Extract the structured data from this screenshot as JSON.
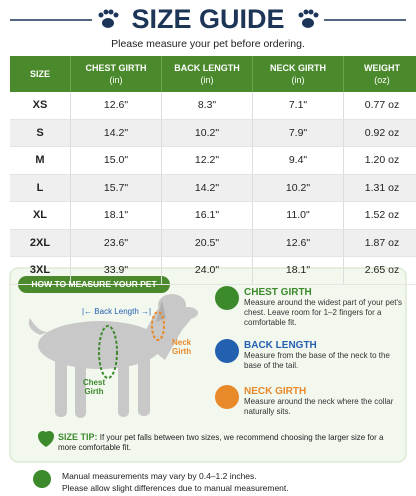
{
  "header": {
    "title": "SIZE GUIDE",
    "subtitle": "Please measure your pet before ordering."
  },
  "table": {
    "columns": [
      {
        "name": "SIZE"
      },
      {
        "name": "CHEST GIRTH",
        "unit": "(in)"
      },
      {
        "name": "BACK LENGTH",
        "unit": "(in)"
      },
      {
        "name": "NECK GIRTH",
        "unit": "(in)"
      },
      {
        "name": "WEIGHT",
        "unit": "(oz)"
      }
    ],
    "rows": [
      [
        "XS",
        "12.6\"",
        "8.3\"",
        "7.1\"",
        "0.77 oz"
      ],
      [
        "S",
        "14.2\"",
        "10.2\"",
        "7.9\"",
        "0.92 oz"
      ],
      [
        "M",
        "15.0\"",
        "12.2\"",
        "9.4\"",
        "1.20 oz"
      ],
      [
        "L",
        "15.7\"",
        "14.2\"",
        "10.2\"",
        "1.31 oz"
      ],
      [
        "XL",
        "18.1\"",
        "16.1\"",
        "11.0\"",
        "1.52 oz"
      ],
      [
        "2XL",
        "23.6\"",
        "20.5\"",
        "12.6\"",
        "1.87 oz"
      ],
      [
        "3XL",
        "33.9\"",
        "24.0\"",
        "18.1\"",
        "2.65 oz"
      ]
    ]
  },
  "measure": {
    "title": "HOW TO MEASURE YOUR PET",
    "diagram": {
      "back_length": "|← Back Length →|",
      "neck_girth": "Neck Girth",
      "chest_girth": "Chest Girth"
    },
    "items": [
      {
        "title": "CHEST GIRTH",
        "text": "Measure around the widest part of your pet's chest. Leave room for 1–2 fingers for a comfortable fit."
      },
      {
        "title": "BACK LENGTH",
        "text": "Measure from the base of the neck to the base of the tail."
      },
      {
        "title": "NECK GIRTH",
        "text": "Measure around the neck where the collar naturally sits."
      }
    ],
    "tip": {
      "label": "SIZE TIP:",
      "text": "If your pet falls between two sizes, we recommend choosing the larger size for a more comfortable fit."
    }
  },
  "note": [
    "Manual measurements may vary by 0.4–1.2 inches.",
    "Please allow slight differences due to manual measurement."
  ]
}
